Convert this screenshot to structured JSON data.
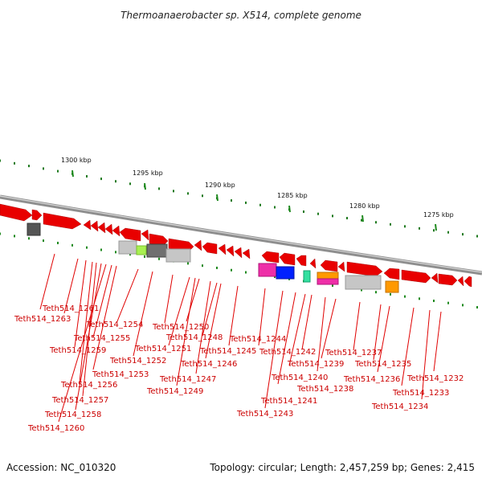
{
  "title": "Thermoanaerobacter sp. X514, complete genome",
  "footer": {
    "accession": "Accession: NC_010320",
    "summary": "Topology: circular; Length: 2,457,259 bp; Genes: 2,415"
  },
  "colors": {
    "forward_gene": "#e80000",
    "backbone": "#9a9a9a",
    "major_tick": "#1f8a1f",
    "label": "#cc0000",
    "leader": "#e00000"
  },
  "ticks": {
    "labels": [
      "1300 kbp",
      "1295 kbp",
      "1290 kbp",
      "1285 kbp",
      "1280 kbp",
      "1275 kbp"
    ]
  },
  "genes": [
    "Teth514_1261",
    "Teth514_1263",
    "Teth514_1254",
    "Teth514_1255",
    "Teth514_1259",
    "Teth514_1253",
    "Teth514_1256",
    "Teth514_1257",
    "Teth514_1258",
    "Teth514_1260",
    "Teth514_1250",
    "Teth514_1248",
    "Teth514_1251",
    "Teth514_1252",
    "Teth514_1246",
    "Teth514_1247",
    "Teth514_1249",
    "Teth514_1244",
    "Teth514_1245",
    "Teth514_1242",
    "Teth514_1239",
    "Teth514_1240",
    "Teth514_1238",
    "Teth514_1241",
    "Teth514_1243",
    "Teth514_1237",
    "Teth514_1236",
    "Teth514_1235",
    "Teth514_1232",
    "Teth514_1233",
    "Teth514_1234"
  ]
}
